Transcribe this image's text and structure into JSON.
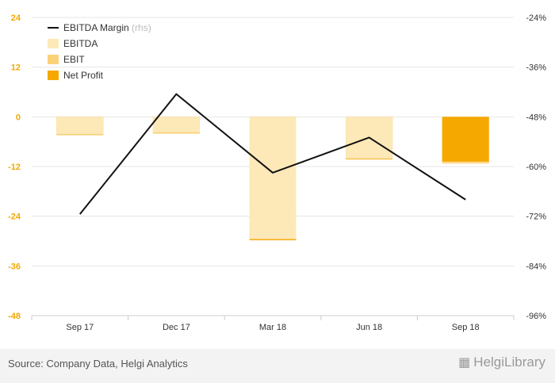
{
  "chart_data": {
    "type": "bar",
    "categories": [
      "Sep 17",
      "Dec 17",
      "Mar 18",
      "Jun 18",
      "Sep 18"
    ],
    "series": [
      {
        "name": "EBITDA",
        "type": "bar",
        "axis": "left",
        "values": [
          -4.2,
          -3.8,
          -29.4,
          -10.0,
          -11.4
        ]
      },
      {
        "name": "EBIT",
        "type": "bar",
        "axis": "left",
        "values": [
          -4.3,
          -3.9,
          -29.6,
          -10.2,
          -11.1
        ]
      },
      {
        "name": "Net Profit",
        "type": "bar",
        "axis": "left",
        "values": [
          -4.4,
          -4.0,
          -29.8,
          -10.3,
          -10.8
        ]
      },
      {
        "name": "EBITDA Margin",
        "type": "line",
        "axis": "right",
        "values": [
          -71.5,
          -42.5,
          -61.5,
          -53.0,
          -68.0
        ]
      }
    ],
    "y_left": {
      "ylim": [
        -48,
        24
      ],
      "ticks": [
        "24",
        "12",
        "0",
        "-12",
        "-24",
        "-36",
        "-48"
      ]
    },
    "y_right": {
      "ylim": [
        -96,
        -24
      ],
      "ticks": [
        "-24%",
        "-36%",
        "-48%",
        "-60%",
        "-72%",
        "-84%",
        "-96%"
      ]
    },
    "legend": {
      "placement": "top-left",
      "items": [
        {
          "label": "EBITDA Margin",
          "note": "(rhs)",
          "swatch": "line",
          "color": "#111111"
        },
        {
          "label": "EBITDA",
          "note": "",
          "swatch": "box",
          "color": "#fde8b8"
        },
        {
          "label": "EBIT",
          "note": "",
          "swatch": "box",
          "color": "#fbd27a"
        },
        {
          "label": "Net Profit",
          "note": "",
          "swatch": "box",
          "color": "#f5a800"
        }
      ]
    },
    "grid": true
  },
  "colors": {
    "ebitda": "#fde8b8",
    "ebit": "#fbd27a",
    "net_profit": "#f5a800",
    "margin_line": "#111111",
    "left_axis_text": "#f5a800"
  },
  "footer": {
    "source": "Source: Company Data, Helgi Analytics",
    "brand": "HelgiLibrary",
    "brand_icon": "helgi-library-logo-icon"
  }
}
